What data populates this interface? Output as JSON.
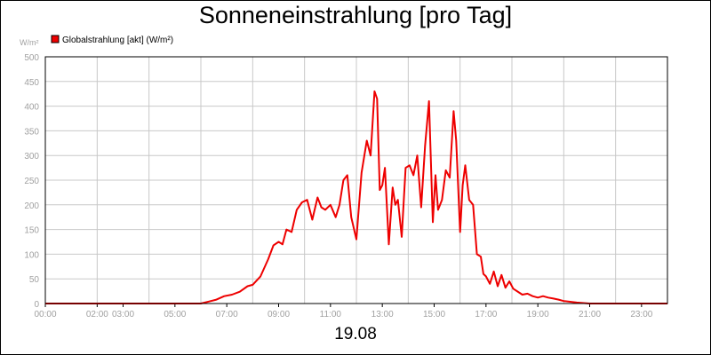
{
  "chart_data": {
    "type": "line",
    "title": "Sonneneinstrahlung [pro Tag]",
    "ylabel": "W/m²",
    "xlabel": "19.08",
    "ylim": [
      0,
      500
    ],
    "xlim": [
      0,
      24
    ],
    "y_ticks": [
      "0",
      "50",
      "100",
      "150",
      "200",
      "250",
      "300",
      "350",
      "400",
      "450",
      "500"
    ],
    "x_tick_labels": [
      "00:00",
      "02:00",
      "03:00",
      "05:00",
      "07:00",
      "09:00",
      "11:00",
      "13:00",
      "15:00",
      "17:00",
      "19:00",
      "21:00",
      "23:00"
    ],
    "x_tick_hours": [
      0,
      2,
      3,
      5,
      7,
      9,
      11,
      13,
      15,
      17,
      19,
      21,
      23
    ],
    "grid": true,
    "legend_position": "top-left",
    "series": [
      {
        "name": "Globalstrahlung [akt] (W/m²)",
        "color": "#ee0000",
        "x": [
          0,
          6,
          6.3,
          6.6,
          6.9,
          7.2,
          7.5,
          7.8,
          8.0,
          8.3,
          8.6,
          8.8,
          9.0,
          9.15,
          9.3,
          9.5,
          9.7,
          9.9,
          10.1,
          10.3,
          10.5,
          10.65,
          10.8,
          11.0,
          11.2,
          11.35,
          11.5,
          11.65,
          11.8,
          12.0,
          12.2,
          12.4,
          12.55,
          12.7,
          12.8,
          12.9,
          13.0,
          13.1,
          13.25,
          13.4,
          13.5,
          13.6,
          13.75,
          13.9,
          14.05,
          14.2,
          14.35,
          14.5,
          14.65,
          14.8,
          14.95,
          15.05,
          15.15,
          15.3,
          15.45,
          15.6,
          15.75,
          15.85,
          16.0,
          16.1,
          16.2,
          16.35,
          16.5,
          16.65,
          16.8,
          16.9,
          17.0,
          17.15,
          17.3,
          17.45,
          17.6,
          17.75,
          17.9,
          18.05,
          18.2,
          18.4,
          18.6,
          18.8,
          19.0,
          19.2,
          19.4,
          19.6,
          19.8,
          20.0,
          20.5,
          21.0,
          22.0,
          24.0
        ],
        "values": [
          0,
          0,
          4,
          8,
          15,
          18,
          24,
          35,
          38,
          55,
          90,
          118,
          125,
          120,
          150,
          145,
          190,
          205,
          210,
          170,
          215,
          195,
          190,
          200,
          175,
          200,
          250,
          260,
          175,
          130,
          265,
          330,
          300,
          430,
          415,
          230,
          240,
          275,
          120,
          235,
          200,
          210,
          135,
          275,
          280,
          260,
          300,
          195,
          320,
          410,
          165,
          260,
          190,
          210,
          270,
          255,
          390,
          330,
          145,
          240,
          280,
          210,
          200,
          100,
          95,
          60,
          55,
          40,
          65,
          35,
          58,
          32,
          45,
          30,
          25,
          18,
          20,
          15,
          12,
          15,
          12,
          10,
          8,
          5,
          2,
          0,
          0,
          0
        ]
      }
    ]
  }
}
